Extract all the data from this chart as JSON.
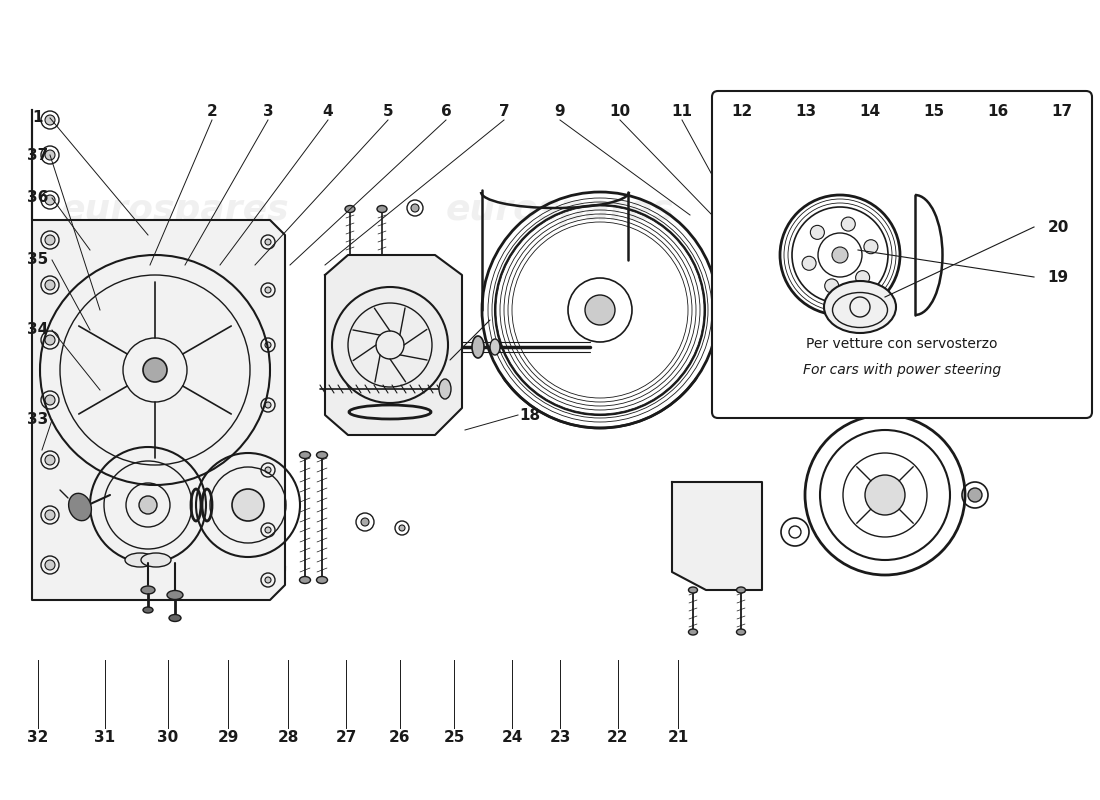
{
  "bg_color": "#ffffff",
  "line_color": "#1a1a1a",
  "watermark_color": "#d0d0d0",
  "watermark_text": "eurospares",
  "box_note_text_it": "Per vetture con servosterzo",
  "box_note_text_en": "For cars with power steering",
  "label_fontsize": 11,
  "note_fontsize_it": 10,
  "note_fontsize_en": 10
}
